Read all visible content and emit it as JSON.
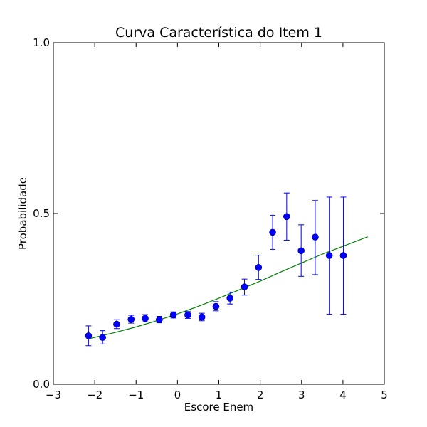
{
  "chart_data": {
    "type": "scatter",
    "title": "Curva Característica do Item 1",
    "xlabel": "Escore Enem",
    "ylabel": "Probabilidade",
    "xlim": [
      -3,
      5
    ],
    "ylim": [
      0.0,
      1.0
    ],
    "x_ticks": [
      -3,
      -2,
      -1,
      0,
      1,
      2,
      3,
      4,
      5
    ],
    "x_tick_labels": [
      "−3",
      "−2",
      "−1",
      "0",
      "1",
      "2",
      "3",
      "4",
      "5"
    ],
    "y_ticks": [
      0.0,
      0.5,
      1.0
    ],
    "y_tick_labels": [
      "0.0",
      "0.5",
      "1.0"
    ],
    "grid": false,
    "series": [
      {
        "type": "errorbar",
        "color": "#0000ff",
        "points": [
          {
            "x": -2.15,
            "y": 0.142,
            "low": 0.113,
            "high": 0.171
          },
          {
            "x": -1.81,
            "y": 0.137,
            "low": 0.118,
            "high": 0.157
          },
          {
            "x": -1.47,
            "y": 0.176,
            "low": 0.163,
            "high": 0.189
          },
          {
            "x": -1.12,
            "y": 0.19,
            "low": 0.179,
            "high": 0.202
          },
          {
            "x": -0.78,
            "y": 0.193,
            "low": 0.183,
            "high": 0.204
          },
          {
            "x": -0.44,
            "y": 0.189,
            "low": 0.18,
            "high": 0.199
          },
          {
            "x": -0.1,
            "y": 0.203,
            "low": 0.194,
            "high": 0.212
          },
          {
            "x": 0.25,
            "y": 0.203,
            "low": 0.193,
            "high": 0.213
          },
          {
            "x": 0.59,
            "y": 0.197,
            "low": 0.186,
            "high": 0.208
          },
          {
            "x": 0.93,
            "y": 0.228,
            "low": 0.215,
            "high": 0.242
          },
          {
            "x": 1.27,
            "y": 0.252,
            "low": 0.235,
            "high": 0.27
          },
          {
            "x": 1.62,
            "y": 0.285,
            "low": 0.261,
            "high": 0.308
          },
          {
            "x": 1.96,
            "y": 0.342,
            "low": 0.307,
            "high": 0.378
          },
          {
            "x": 2.3,
            "y": 0.445,
            "low": 0.395,
            "high": 0.495
          },
          {
            "x": 2.64,
            "y": 0.491,
            "low": 0.422,
            "high": 0.56
          },
          {
            "x": 2.99,
            "y": 0.391,
            "low": 0.316,
            "high": 0.467
          },
          {
            "x": 3.33,
            "y": 0.431,
            "low": 0.321,
            "high": 0.538
          },
          {
            "x": 3.67,
            "y": 0.377,
            "low": 0.205,
            "high": 0.548
          },
          {
            "x": 4.01,
            "y": 0.377,
            "low": 0.205,
            "high": 0.548
          }
        ]
      },
      {
        "type": "line",
        "color": "#008000",
        "x": [
          -2.15,
          -1.5,
          -1.0,
          -0.5,
          0.0,
          0.5,
          1.0,
          1.5,
          2.0,
          2.5,
          3.0,
          3.5,
          4.0,
          4.6
        ],
        "y": [
          0.133,
          0.152,
          0.168,
          0.186,
          0.206,
          0.228,
          0.252,
          0.277,
          0.302,
          0.329,
          0.355,
          0.381,
          0.404,
          0.432
        ]
      }
    ]
  }
}
